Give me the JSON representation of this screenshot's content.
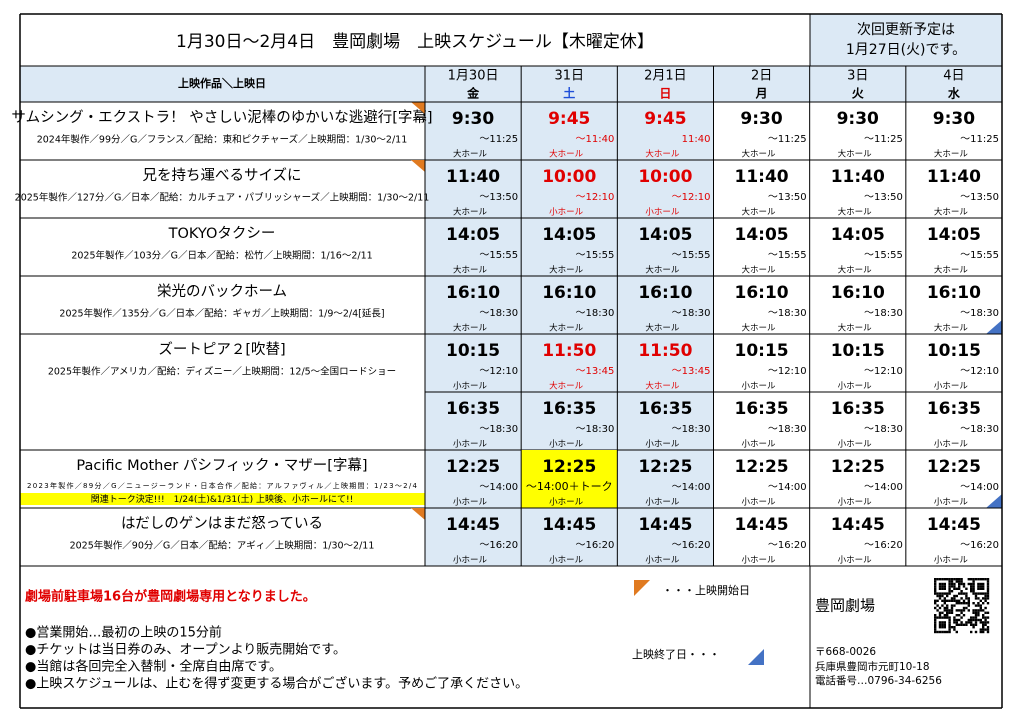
{
  "header": {
    "title": "1月30日～2月4日　豊岡劇場　上映スケジュール【木曜定休】",
    "notice": [
      "次回更新予定は",
      "1月27日(火)です。"
    ]
  },
  "table": {
    "corner": "上映作品＼上映日",
    "days": [
      {
        "date": "1月30日",
        "weekday": "金",
        "color": "#000000"
      },
      {
        "date": "31日",
        "weekday": "土",
        "color": "#1f4fd8"
      },
      {
        "date": "2月1日",
        "weekday": "日",
        "color": "#e00000"
      },
      {
        "date": "2日",
        "weekday": "月",
        "color": "#000000"
      },
      {
        "date": "3日",
        "weekday": "火",
        "color": "#000000"
      },
      {
        "date": "4日",
        "weekday": "水",
        "color": "#000000"
      }
    ],
    "shaded_days": [
      true,
      true,
      true,
      false,
      false,
      false
    ],
    "films": [
      {
        "title": "サムシング・エクストラ！ やさしい泥棒のゆかいな逃避行[字幕]",
        "info": "2024年製作／99分／G／フランス／配給：東和ピクチャーズ／上映期間：1/30～2/11",
        "starts": true,
        "ends": false,
        "slots": [
          [
            {
              "start": "9:30",
              "end": "～11:25",
              "hall": "大ホール"
            },
            {
              "start": "9:45",
              "end": "～11:40",
              "hall": "大ホール",
              "color": "#e00000"
            },
            {
              "start": "9:45",
              "end": "11:40",
              "hall": "大ホール",
              "color": "#e00000"
            },
            {
              "start": "9:30",
              "end": "～11:25",
              "hall": "大ホール"
            },
            {
              "start": "9:30",
              "end": "～11:25",
              "hall": "大ホール"
            },
            {
              "start": "9:30",
              "end": "～11:25",
              "hall": "大ホール"
            }
          ]
        ]
      },
      {
        "title": "兄を持ち運べるサイズに",
        "info": "2025年製作／127分／G／日本／配給：カルチュア・パブリッシャーズ／上映期間：1/30～2/11",
        "starts": true,
        "ends": false,
        "slots": [
          [
            {
              "start": "11:40",
              "end": "～13:50",
              "hall": "大ホール"
            },
            {
              "start": "10:00",
              "end": "～12:10",
              "hall": "小ホール",
              "color": "#e00000"
            },
            {
              "start": "10:00",
              "end": "～12:10",
              "hall": "小ホール",
              "color": "#e00000"
            },
            {
              "start": "11:40",
              "end": "～13:50",
              "hall": "大ホール"
            },
            {
              "start": "11:40",
              "end": "～13:50",
              "hall": "大ホール"
            },
            {
              "start": "11:40",
              "end": "～13:50",
              "hall": "大ホール"
            }
          ]
        ]
      },
      {
        "title": "TOKYOタクシー",
        "info": "2025年製作／103分／G／日本／配給：松竹／上映期間：1/16～2/11",
        "starts": false,
        "ends": false,
        "slots": [
          [
            {
              "start": "14:05",
              "end": "～15:55",
              "hall": "大ホール"
            },
            {
              "start": "14:05",
              "end": "～15:55",
              "hall": "大ホール"
            },
            {
              "start": "14:05",
              "end": "～15:55",
              "hall": "大ホール"
            },
            {
              "start": "14:05",
              "end": "～15:55",
              "hall": "大ホール"
            },
            {
              "start": "14:05",
              "end": "～15:55",
              "hall": "大ホール"
            },
            {
              "start": "14:05",
              "end": "～15:55",
              "hall": "大ホール"
            }
          ]
        ]
      },
      {
        "title": "栄光のバックホーム",
        "info": "2025年製作／135分／G／日本／配給：ギャガ／上映期間：1/9～2/4[延長]",
        "starts": false,
        "ends": true,
        "slots": [
          [
            {
              "start": "16:10",
              "end": "～18:30",
              "hall": "大ホール"
            },
            {
              "start": "16:10",
              "end": "～18:30",
              "hall": "大ホール"
            },
            {
              "start": "16:10",
              "end": "～18:30",
              "hall": "大ホール"
            },
            {
              "start": "16:10",
              "end": "～18:30",
              "hall": "大ホール"
            },
            {
              "start": "16:10",
              "end": "～18:30",
              "hall": "大ホール"
            },
            {
              "start": "16:10",
              "end": "～18:30",
              "hall": "大ホール"
            }
          ]
        ]
      },
      {
        "title": "ズートピア２[吹替]",
        "info": "2025年製作／アメリカ／配給：ディズニー／上映期間：12/5～全国ロードショー",
        "starts": false,
        "ends": false,
        "slots": [
          [
            {
              "start": "10:15",
              "end": "～12:10",
              "hall": "小ホール"
            },
            {
              "start": "11:50",
              "end": "～13:45",
              "hall": "大ホール",
              "color": "#e00000"
            },
            {
              "start": "11:50",
              "end": "～13:45",
              "hall": "大ホール",
              "color": "#e00000"
            },
            {
              "start": "10:15",
              "end": "～12:10",
              "hall": "小ホール"
            },
            {
              "start": "10:15",
              "end": "～12:10",
              "hall": "小ホール"
            },
            {
              "start": "10:15",
              "end": "～12:10",
              "hall": "小ホール"
            }
          ],
          [
            {
              "start": "16:35",
              "end": "～18:30",
              "hall": "小ホール"
            },
            {
              "start": "16:35",
              "end": "～18:30",
              "hall": "小ホール"
            },
            {
              "start": "16:35",
              "end": "～18:30",
              "hall": "小ホール"
            },
            {
              "start": "16:35",
              "end": "～18:30",
              "hall": "小ホール"
            },
            {
              "start": "16:35",
              "end": "～18:30",
              "hall": "小ホール"
            },
            {
              "start": "16:35",
              "end": "～18:30",
              "hall": "小ホール"
            }
          ]
        ]
      },
      {
        "title": "Pacific Mother パシフィック・マザー[字幕]",
        "info": "2023年製作／89分／G／ニュージーランド・日本合作／配給：アルファヴィル／上映期間：1/23～2/4",
        "note": "関連トーク決定!!!　1/24(土)&1/31(土) 上映後、小ホールにて!!",
        "starts": false,
        "ends": true,
        "slots": [
          [
            {
              "start": "12:25",
              "end": "～14:00",
              "hall": "小ホール"
            },
            {
              "start": "12:25",
              "end": "～14:00＋トーク",
              "hall": "小ホール",
              "highlight": "#ffff00"
            },
            {
              "start": "12:25",
              "end": "～14:00",
              "hall": "小ホール"
            },
            {
              "start": "12:25",
              "end": "～14:00",
              "hall": "小ホール"
            },
            {
              "start": "12:25",
              "end": "～14:00",
              "hall": "小ホール"
            },
            {
              "start": "12:25",
              "end": "～14:00",
              "hall": "小ホール"
            }
          ]
        ]
      },
      {
        "title": "はだしのゲンはまだ怒っている",
        "info": "2025年製作／90分／G／日本／配給：アギィ／上映期間：1/30～2/11",
        "starts": true,
        "ends": false,
        "slots": [
          [
            {
              "start": "14:45",
              "end": "～16:20",
              "hall": "小ホール"
            },
            {
              "start": "14:45",
              "end": "～16:20",
              "hall": "小ホール"
            },
            {
              "start": "14:45",
              "end": "～16:20",
              "hall": "小ホール"
            },
            {
              "start": "14:45",
              "end": "～16:20",
              "hall": "小ホール"
            },
            {
              "start": "14:45",
              "end": "～16:20",
              "hall": "小ホール"
            },
            {
              "start": "14:45",
              "end": "～16:20",
              "hall": "小ホール"
            }
          ]
        ]
      }
    ]
  },
  "footer": {
    "announcement": "劇場前駐車場16台が豊岡劇場専用となりました。",
    "notes": [
      "●営業開始…最初の上映の15分前",
      "●チケットは当日券のみ、オープンより販売開始です。",
      "●当館は各回完全入替制・全席自由席です。",
      "●上映スケジュールは、止むを得ず変更する場合がございます。予めご了承ください。"
    ],
    "legend_start": "・・・上映開始日",
    "legend_end": "上映終了日・・・",
    "theater": "豊岡劇場",
    "address": [
      "〒668-0026",
      "兵庫県豊岡市元町10-18",
      "電話番号…0796-34-6256"
    ]
  }
}
